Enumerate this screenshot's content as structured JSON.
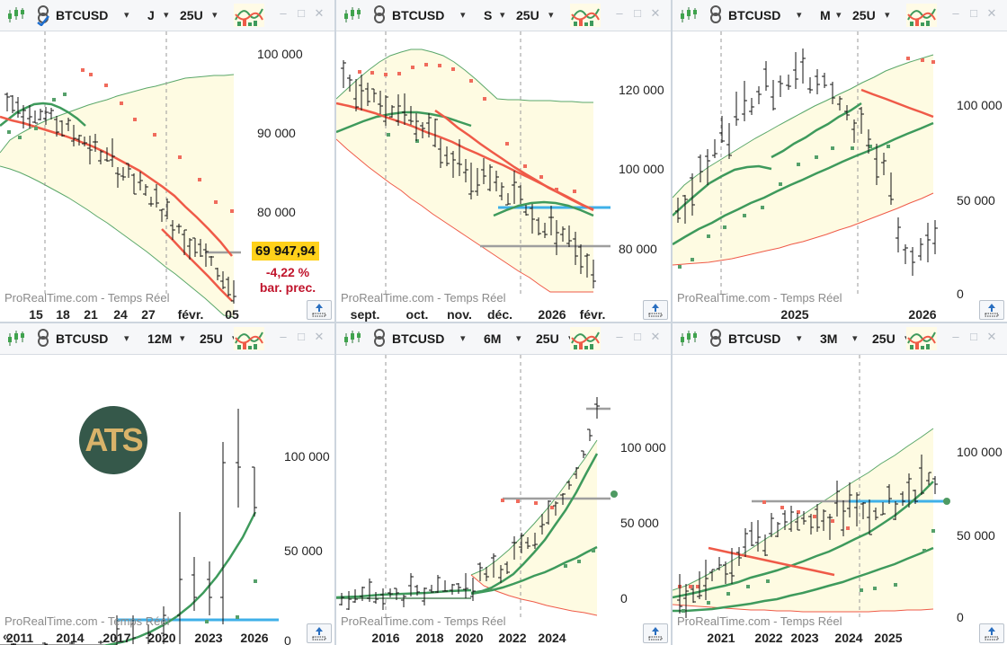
{
  "colors": {
    "band_fill": "#fefbe2",
    "band_line": "#5aa76a",
    "ma_green": "#3e9a5c",
    "ma_red": "#ef5a48",
    "sar_red": "#f06b5c",
    "sar_green": "#55a06a",
    "bar": "#111111",
    "hline_blue": "#3fb0e8",
    "hline_grey": "#9e9e9e",
    "grid_dash": "#9a9a9a"
  },
  "watermark": "ProRealTime.com - Temps Réel",
  "panels": [
    {
      "id": "p1",
      "symbol": "BTCUSD",
      "timeframe": "J",
      "units": "25U",
      "chart_data": {
        "type": "ohlc",
        "timeframe": "daily",
        "y_ticks": [
          "100 000",
          "90 000",
          "80 000"
        ],
        "x_labels": [
          "15",
          "18",
          "21",
          "24",
          "27",
          "févr.",
          "05"
        ],
        "last_price": "69 947,94",
        "change": "-4,22 %",
        "change_label": "bar. prec.",
        "series": [
          {
            "name": "",
            "type": "moving_average_green"
          },
          {
            "name": "",
            "type": "moving_average_red"
          },
          {
            "name": "",
            "type": "bollinger_band"
          },
          {
            "name": "",
            "type": "parabolic_sar"
          }
        ]
      }
    },
    {
      "id": "p2",
      "symbol": "BTCUSD",
      "timeframe": "S",
      "units": "25U",
      "chart_data": {
        "type": "ohlc",
        "timeframe": "weekly",
        "y_ticks": [
          "120 000",
          "100 000",
          "80 000"
        ],
        "x_labels": [
          "sept.",
          "oct.",
          "nov.",
          "déc.",
          "2026",
          "févr."
        ]
      }
    },
    {
      "id": "p3",
      "symbol": "BTCUSD",
      "timeframe": "M",
      "units": "25U",
      "chart_data": {
        "type": "ohlc",
        "timeframe": "monthly",
        "y_ticks": [
          "100 000",
          "50 000",
          "0"
        ],
        "x_labels": [
          "2025",
          "2026"
        ]
      }
    },
    {
      "id": "p4",
      "symbol": "BTCUSD",
      "timeframe": "12M",
      "units": "25U",
      "chart_data": {
        "type": "ohlc",
        "timeframe": "yearly",
        "y_ticks": [
          "100 000",
          "50 000",
          "0"
        ],
        "x_labels": [
          "2011",
          "2014",
          "2017",
          "2020",
          "2023",
          "2026"
        ],
        "logo": "ATS"
      }
    },
    {
      "id": "p5",
      "symbol": "BTCUSD",
      "timeframe": "6M",
      "units": "25U",
      "chart_data": {
        "type": "ohlc",
        "timeframe": "semiannual",
        "y_ticks": [
          "100 000",
          "50 000",
          "0"
        ],
        "x_labels": [
          "2016",
          "2018",
          "2020",
          "2022",
          "2024"
        ]
      }
    },
    {
      "id": "p6",
      "symbol": "BTCUSD",
      "timeframe": "3M",
      "units": "25U",
      "chart_data": {
        "type": "ohlc",
        "timeframe": "quarterly",
        "y_ticks": [
          "100 000",
          "50 000",
          "0"
        ],
        "x_labels": [
          "2021",
          "2022",
          "2023",
          "2024",
          "2025"
        ]
      }
    }
  ]
}
